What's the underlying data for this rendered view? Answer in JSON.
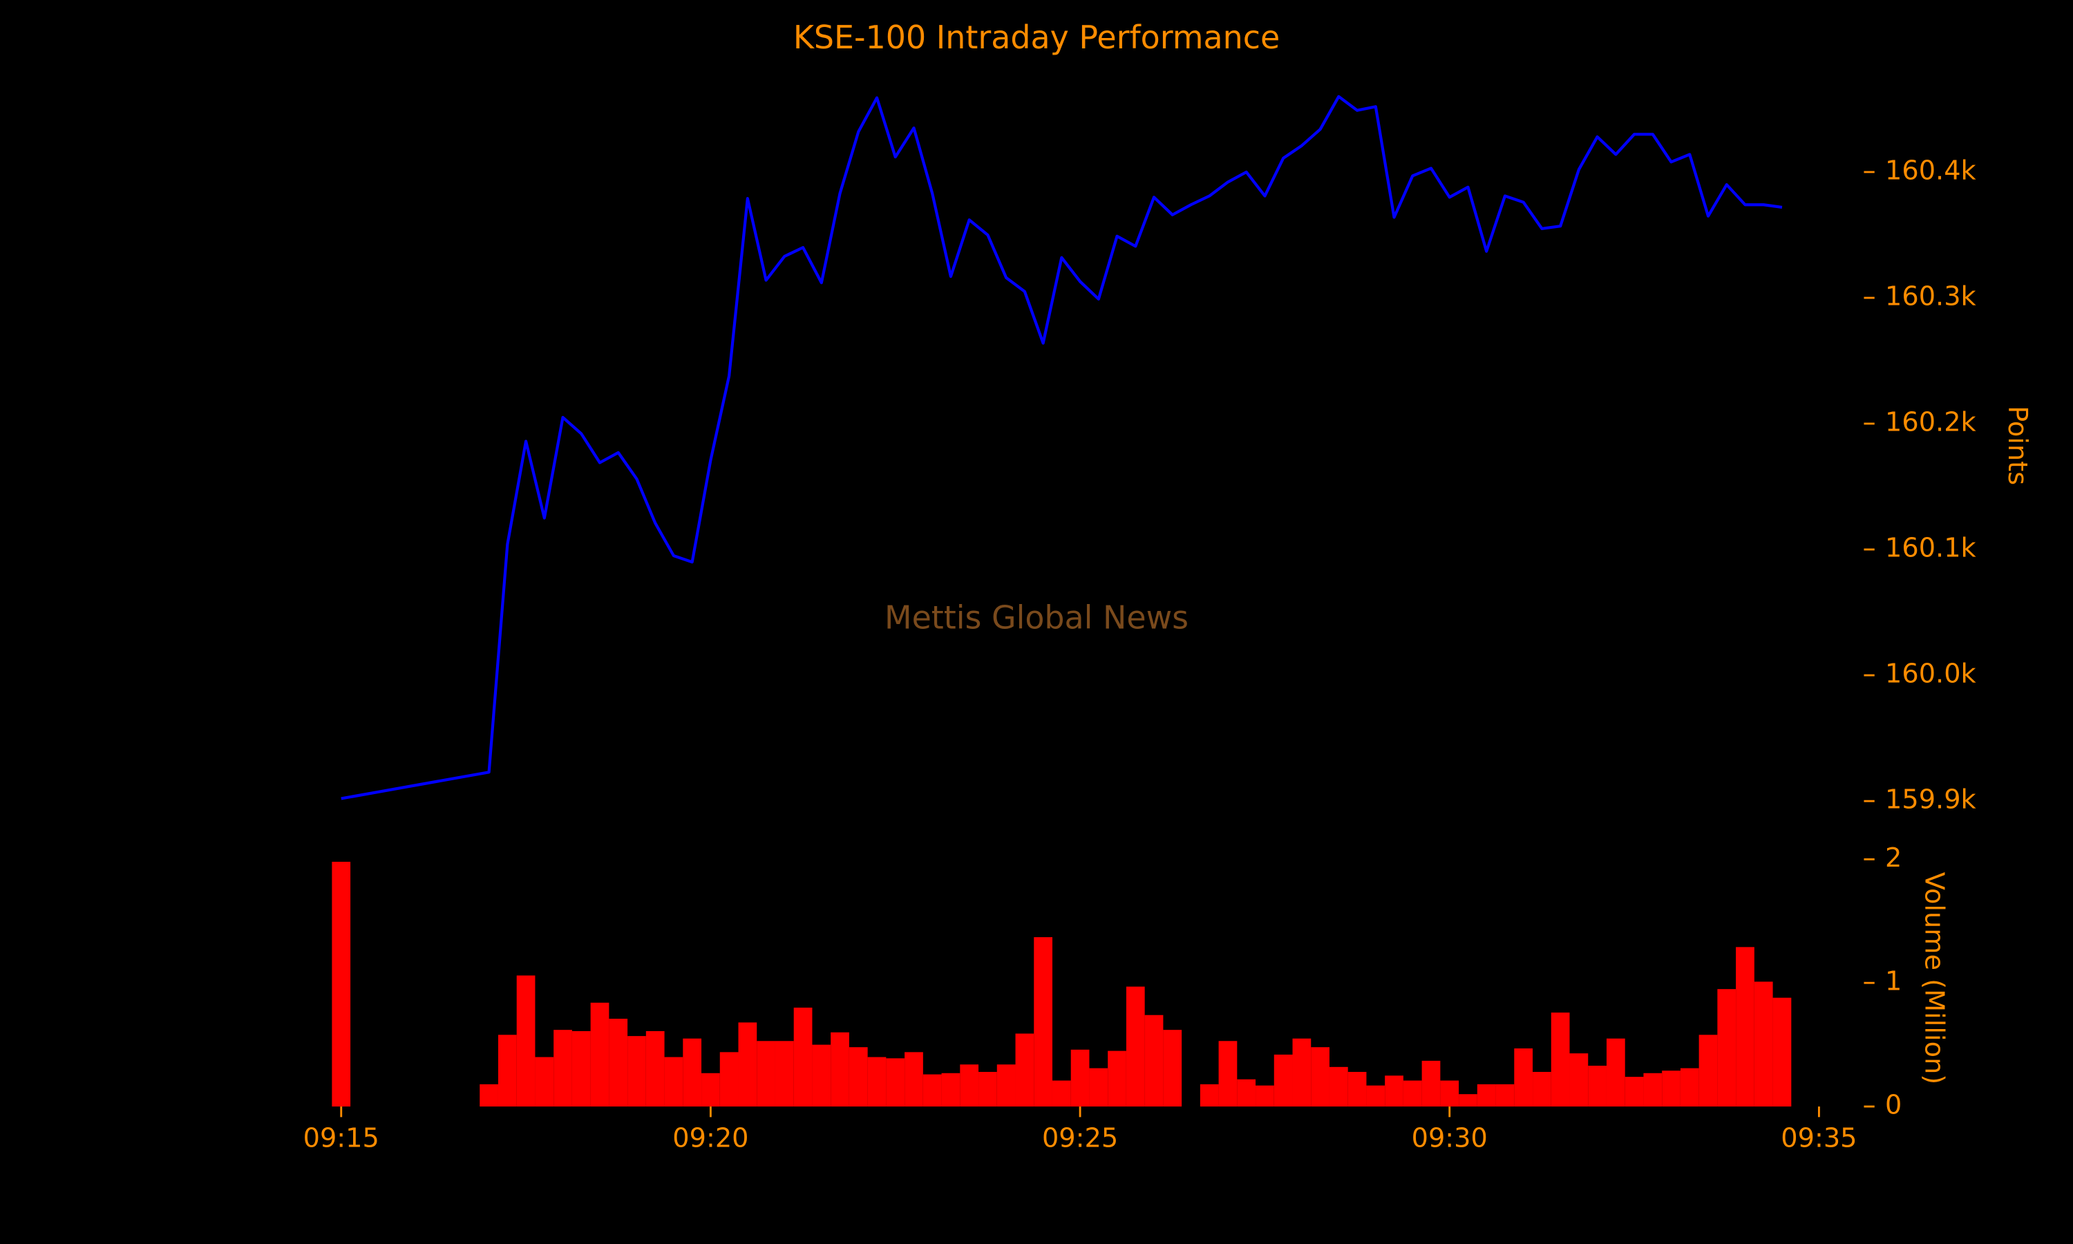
{
  "chart_data": [
    {
      "type": "line",
      "title": "KSE-100 Intraday Performance",
      "annotation": "Mettis Global News",
      "ylabel": "Points",
      "color": "#0000ff",
      "x": [
        "09:15:00",
        "09:17:00",
        "09:17:15",
        "09:17:30",
        "09:17:45",
        "09:18:00",
        "09:18:15",
        "09:18:30",
        "09:18:45",
        "09:19:00",
        "09:19:15",
        "09:19:30",
        "09:19:45",
        "09:20:00",
        "09:20:15",
        "09:20:30",
        "09:20:45",
        "09:21:00",
        "09:21:15",
        "09:21:30",
        "09:21:45",
        "09:22:00",
        "09:22:15",
        "09:22:30",
        "09:22:45",
        "09:23:00",
        "09:23:15",
        "09:23:30",
        "09:23:45",
        "09:24:00",
        "09:24:15",
        "09:24:30",
        "09:24:45",
        "09:25:00",
        "09:25:15",
        "09:25:30",
        "09:25:45",
        "09:26:00",
        "09:26:15",
        "09:26:30",
        "09:26:45",
        "09:27:00",
        "09:27:15",
        "09:27:30",
        "09:27:45",
        "09:28:00",
        "09:28:15",
        "09:28:30",
        "09:28:45",
        "09:29:00",
        "09:29:15",
        "09:29:30",
        "09:29:45",
        "09:30:00",
        "09:30:15",
        "09:30:30",
        "09:30:45",
        "09:31:00",
        "09:31:15",
        "09:31:30",
        "09:31:45",
        "09:32:00",
        "09:32:15",
        "09:32:30",
        "09:32:45",
        "09:33:00",
        "09:33:15",
        "09:33:30",
        "09:33:45",
        "09:34:00",
        "09:34:15",
        "09:34:30"
      ],
      "values": [
        159902,
        159923,
        160104,
        160186,
        160125,
        160205,
        160192,
        160169,
        160177,
        160156,
        160121,
        160095,
        160090,
        160171,
        160238,
        160379,
        160314,
        160333,
        160340,
        160312,
        160383,
        160432,
        160459,
        160412,
        160435,
        160383,
        160317,
        160362,
        160350,
        160316,
        160305,
        160264,
        160332,
        160313,
        160299,
        160349,
        160341,
        160380,
        160366,
        160374,
        160381,
        160392,
        160400,
        160381,
        160411,
        160421,
        160434,
        160460,
        160449,
        160452,
        160364,
        160397,
        160403,
        160380,
        160388,
        160337,
        160381,
        160376,
        160355,
        160357,
        160402,
        160428,
        160414,
        160430,
        160430,
        160408,
        160414,
        160365,
        160390,
        160374,
        160374,
        160372
      ],
      "xlim": [
        "09:14:30",
        "09:35:00"
      ],
      "ylim": [
        159880,
        160480
      ],
      "yticks": [
        {
          "value": 159900,
          "label": "159.9k"
        },
        {
          "value": 160000,
          "label": "160.0k"
        },
        {
          "value": 160100,
          "label": "160.1k"
        },
        {
          "value": 160200,
          "label": "160.2k"
        },
        {
          "value": 160300,
          "label": "160.3k"
        },
        {
          "value": 160400,
          "label": "160.4k"
        }
      ]
    },
    {
      "type": "bar",
      "ylabel": "Volume (Million)",
      "color": "#ff0000",
      "x": [
        "09:15:00",
        "09:17:00",
        "09:17:15",
        "09:17:30",
        "09:17:45",
        "09:18:00",
        "09:18:15",
        "09:18:30",
        "09:18:45",
        "09:19:00",
        "09:19:15",
        "09:19:30",
        "09:19:45",
        "09:20:00",
        "09:20:15",
        "09:20:30",
        "09:20:45",
        "09:21:00",
        "09:21:15",
        "09:21:30",
        "09:21:45",
        "09:22:00",
        "09:22:15",
        "09:22:30",
        "09:22:45",
        "09:23:00",
        "09:23:15",
        "09:23:30",
        "09:23:45",
        "09:24:00",
        "09:24:15",
        "09:24:30",
        "09:24:45",
        "09:25:00",
        "09:25:15",
        "09:25:30",
        "09:25:45",
        "09:26:00",
        "09:26:15",
        "09:26:30",
        "09:26:45",
        "09:27:00",
        "09:27:15",
        "09:27:30",
        "09:27:45",
        "09:28:00",
        "09:28:15",
        "09:28:30",
        "09:28:45",
        "09:29:00",
        "09:29:15",
        "09:29:30",
        "09:29:45",
        "09:30:00",
        "09:30:15",
        "09:30:30",
        "09:30:45",
        "09:31:00",
        "09:31:15",
        "09:31:30",
        "09:31:45",
        "09:32:00",
        "09:32:15",
        "09:32:30",
        "09:32:45",
        "09:33:00",
        "09:33:15",
        "09:33:30",
        "09:33:45",
        "09:34:00",
        "09:34:15",
        "09:34:30"
      ],
      "values": [
        1.98,
        0.18,
        0.58,
        1.06,
        0.4,
        0.62,
        0.61,
        0.84,
        0.71,
        0.57,
        0.61,
        0.4,
        0.55,
        0.27,
        0.44,
        0.68,
        0.53,
        0.53,
        0.8,
        0.5,
        0.6,
        0.48,
        0.4,
        0.39,
        0.44,
        0.26,
        0.27,
        0.34,
        0.28,
        0.34,
        0.59,
        1.37,
        0.21,
        0.46,
        0.31,
        0.45,
        0.97,
        0.74,
        0.62,
        null,
        0.18,
        0.53,
        0.22,
        0.17,
        0.42,
        0.55,
        0.48,
        0.32,
        0.28,
        0.17,
        0.25,
        0.21,
        0.37,
        0.21,
        0.1,
        0.18,
        0.18,
        0.47,
        0.28,
        0.76,
        0.43,
        0.33,
        0.55,
        0.24,
        0.27,
        0.29,
        0.31,
        0.58,
        0.95,
        1.29,
        1.01,
        0.88
      ],
      "xlim": [
        "09:14:30",
        "09:35:00"
      ],
      "xticks": [
        {
          "value": "09:15:00",
          "label": "09:15"
        },
        {
          "value": "09:20:00",
          "label": "09:20"
        },
        {
          "value": "09:25:00",
          "label": "09:25"
        },
        {
          "value": "09:30:00",
          "label": "09:30"
        },
        {
          "value": "09:35:00",
          "label": "09:35"
        }
      ],
      "ylim": [
        0,
        2
      ],
      "yticks": [
        0,
        1,
        2
      ]
    }
  ]
}
